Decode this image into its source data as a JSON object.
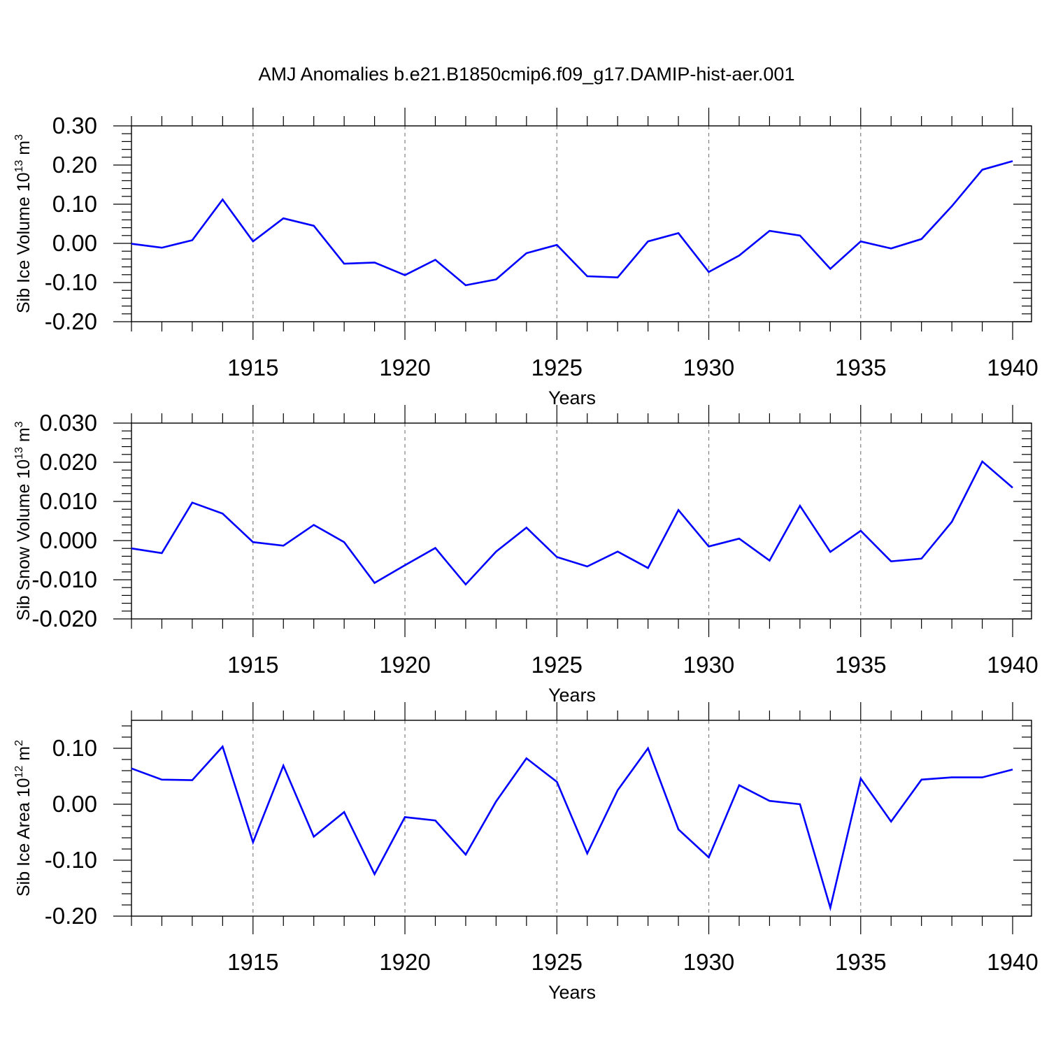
{
  "figure": {
    "title": "AMJ Anomalies b.e21.B1850cmip6.f09_g17.DAMIP-hist-aer.001",
    "line_color": "#0000ff"
  },
  "chart_data": [
    {
      "type": "line",
      "ylabel": {
        "text": "Sib Ice Volume 10",
        "exp": "13",
        "unit": " m",
        "unit_exp": "3"
      },
      "xlabel": "Years",
      "xlim": [
        1911,
        1940
      ],
      "ylim": [
        -0.2,
        0.3
      ],
      "x_ticks": [
        1915,
        1920,
        1925,
        1930,
        1935,
        1940
      ],
      "y_ticks": [
        -0.2,
        -0.1,
        0.0,
        0.1,
        0.2,
        0.3
      ],
      "y_tick_labels": [
        "-0.20",
        "-0.10",
        "0.00",
        "0.10",
        "0.20",
        "0.30"
      ],
      "grid": "vertical dashed at major x ticks",
      "series": [
        {
          "x": [
            1911,
            1912,
            1913,
            1914,
            1915,
            1916,
            1917,
            1918,
            1919,
            1920,
            1921,
            1922,
            1923,
            1924,
            1925,
            1926,
            1927,
            1928,
            1929,
            1930,
            1931,
            1932,
            1933,
            1934,
            1935,
            1936,
            1937,
            1938,
            1939,
            1940
          ],
          "values": [
            -0.001,
            -0.011,
            0.008,
            0.112,
            0.005,
            0.064,
            0.045,
            -0.052,
            -0.049,
            -0.081,
            -0.042,
            -0.107,
            -0.092,
            -0.025,
            -0.004,
            -0.084,
            -0.087,
            0.005,
            0.026,
            -0.073,
            -0.031,
            0.032,
            0.02,
            -0.065,
            0.005,
            -0.013,
            0.011,
            0.095,
            0.188,
            0.21
          ]
        }
      ]
    },
    {
      "type": "line",
      "ylabel": {
        "text": "Sib Snow Volume 10",
        "exp": "13",
        "unit": " m",
        "unit_exp": "3"
      },
      "xlabel": "Years",
      "xlim": [
        1911,
        1940
      ],
      "ylim": [
        -0.02,
        0.03
      ],
      "x_ticks": [
        1915,
        1920,
        1925,
        1930,
        1935,
        1940
      ],
      "y_ticks": [
        -0.02,
        -0.01,
        0.0,
        0.01,
        0.02,
        0.03
      ],
      "y_tick_labels": [
        "-0.020",
        "-0.010",
        "0.000",
        "0.010",
        "0.020",
        "0.030"
      ],
      "grid": "vertical dashed at major x ticks",
      "series": [
        {
          "x": [
            1911,
            1912,
            1913,
            1914,
            1915,
            1916,
            1917,
            1918,
            1919,
            1920,
            1921,
            1922,
            1923,
            1924,
            1925,
            1926,
            1927,
            1928,
            1929,
            1930,
            1931,
            1932,
            1933,
            1934,
            1935,
            1936,
            1937,
            1938,
            1939,
            1940
          ],
          "values": [
            -0.002,
            -0.0032,
            0.0097,
            0.0069,
            -0.0004,
            -0.0013,
            0.004,
            -0.0004,
            -0.0108,
            -0.0063,
            -0.0019,
            -0.0112,
            -0.0028,
            0.0033,
            -0.0042,
            -0.0066,
            -0.0028,
            -0.007,
            0.0078,
            -0.0015,
            0.0005,
            -0.0051,
            0.0089,
            -0.0029,
            0.0025,
            -0.0053,
            -0.0046,
            0.0048,
            0.0202,
            0.0135
          ]
        }
      ]
    },
    {
      "type": "line",
      "ylabel": {
        "text": "Sib Ice Area 10",
        "exp": "12",
        "unit": " m",
        "unit_exp": "2"
      },
      "xlabel": "Years",
      "xlim": [
        1911,
        1940
      ],
      "ylim": [
        -0.2,
        0.15
      ],
      "x_ticks": [
        1915,
        1920,
        1925,
        1930,
        1935,
        1940
      ],
      "y_ticks": [
        -0.2,
        -0.1,
        0.0,
        0.1
      ],
      "y_tick_labels": [
        "-0.20",
        "-0.10",
        "0.00",
        "0.10"
      ],
      "grid": "vertical dashed at major x ticks",
      "series": [
        {
          "x": [
            1911,
            1912,
            1913,
            1914,
            1915,
            1916,
            1917,
            1918,
            1919,
            1920,
            1921,
            1922,
            1923,
            1924,
            1925,
            1926,
            1927,
            1928,
            1929,
            1930,
            1931,
            1932,
            1933,
            1934,
            1935,
            1936,
            1937,
            1938,
            1939,
            1940
          ],
          "values": [
            0.064,
            0.044,
            0.043,
            0.103,
            -0.068,
            0.069,
            -0.058,
            -0.014,
            -0.125,
            -0.023,
            -0.029,
            -0.09,
            0.005,
            0.082,
            0.04,
            -0.088,
            0.025,
            0.1,
            -0.045,
            -0.095,
            0.034,
            0.006,
            0.0,
            -0.185,
            0.046,
            -0.031,
            0.044,
            0.048,
            0.048,
            0.062
          ]
        }
      ]
    }
  ]
}
